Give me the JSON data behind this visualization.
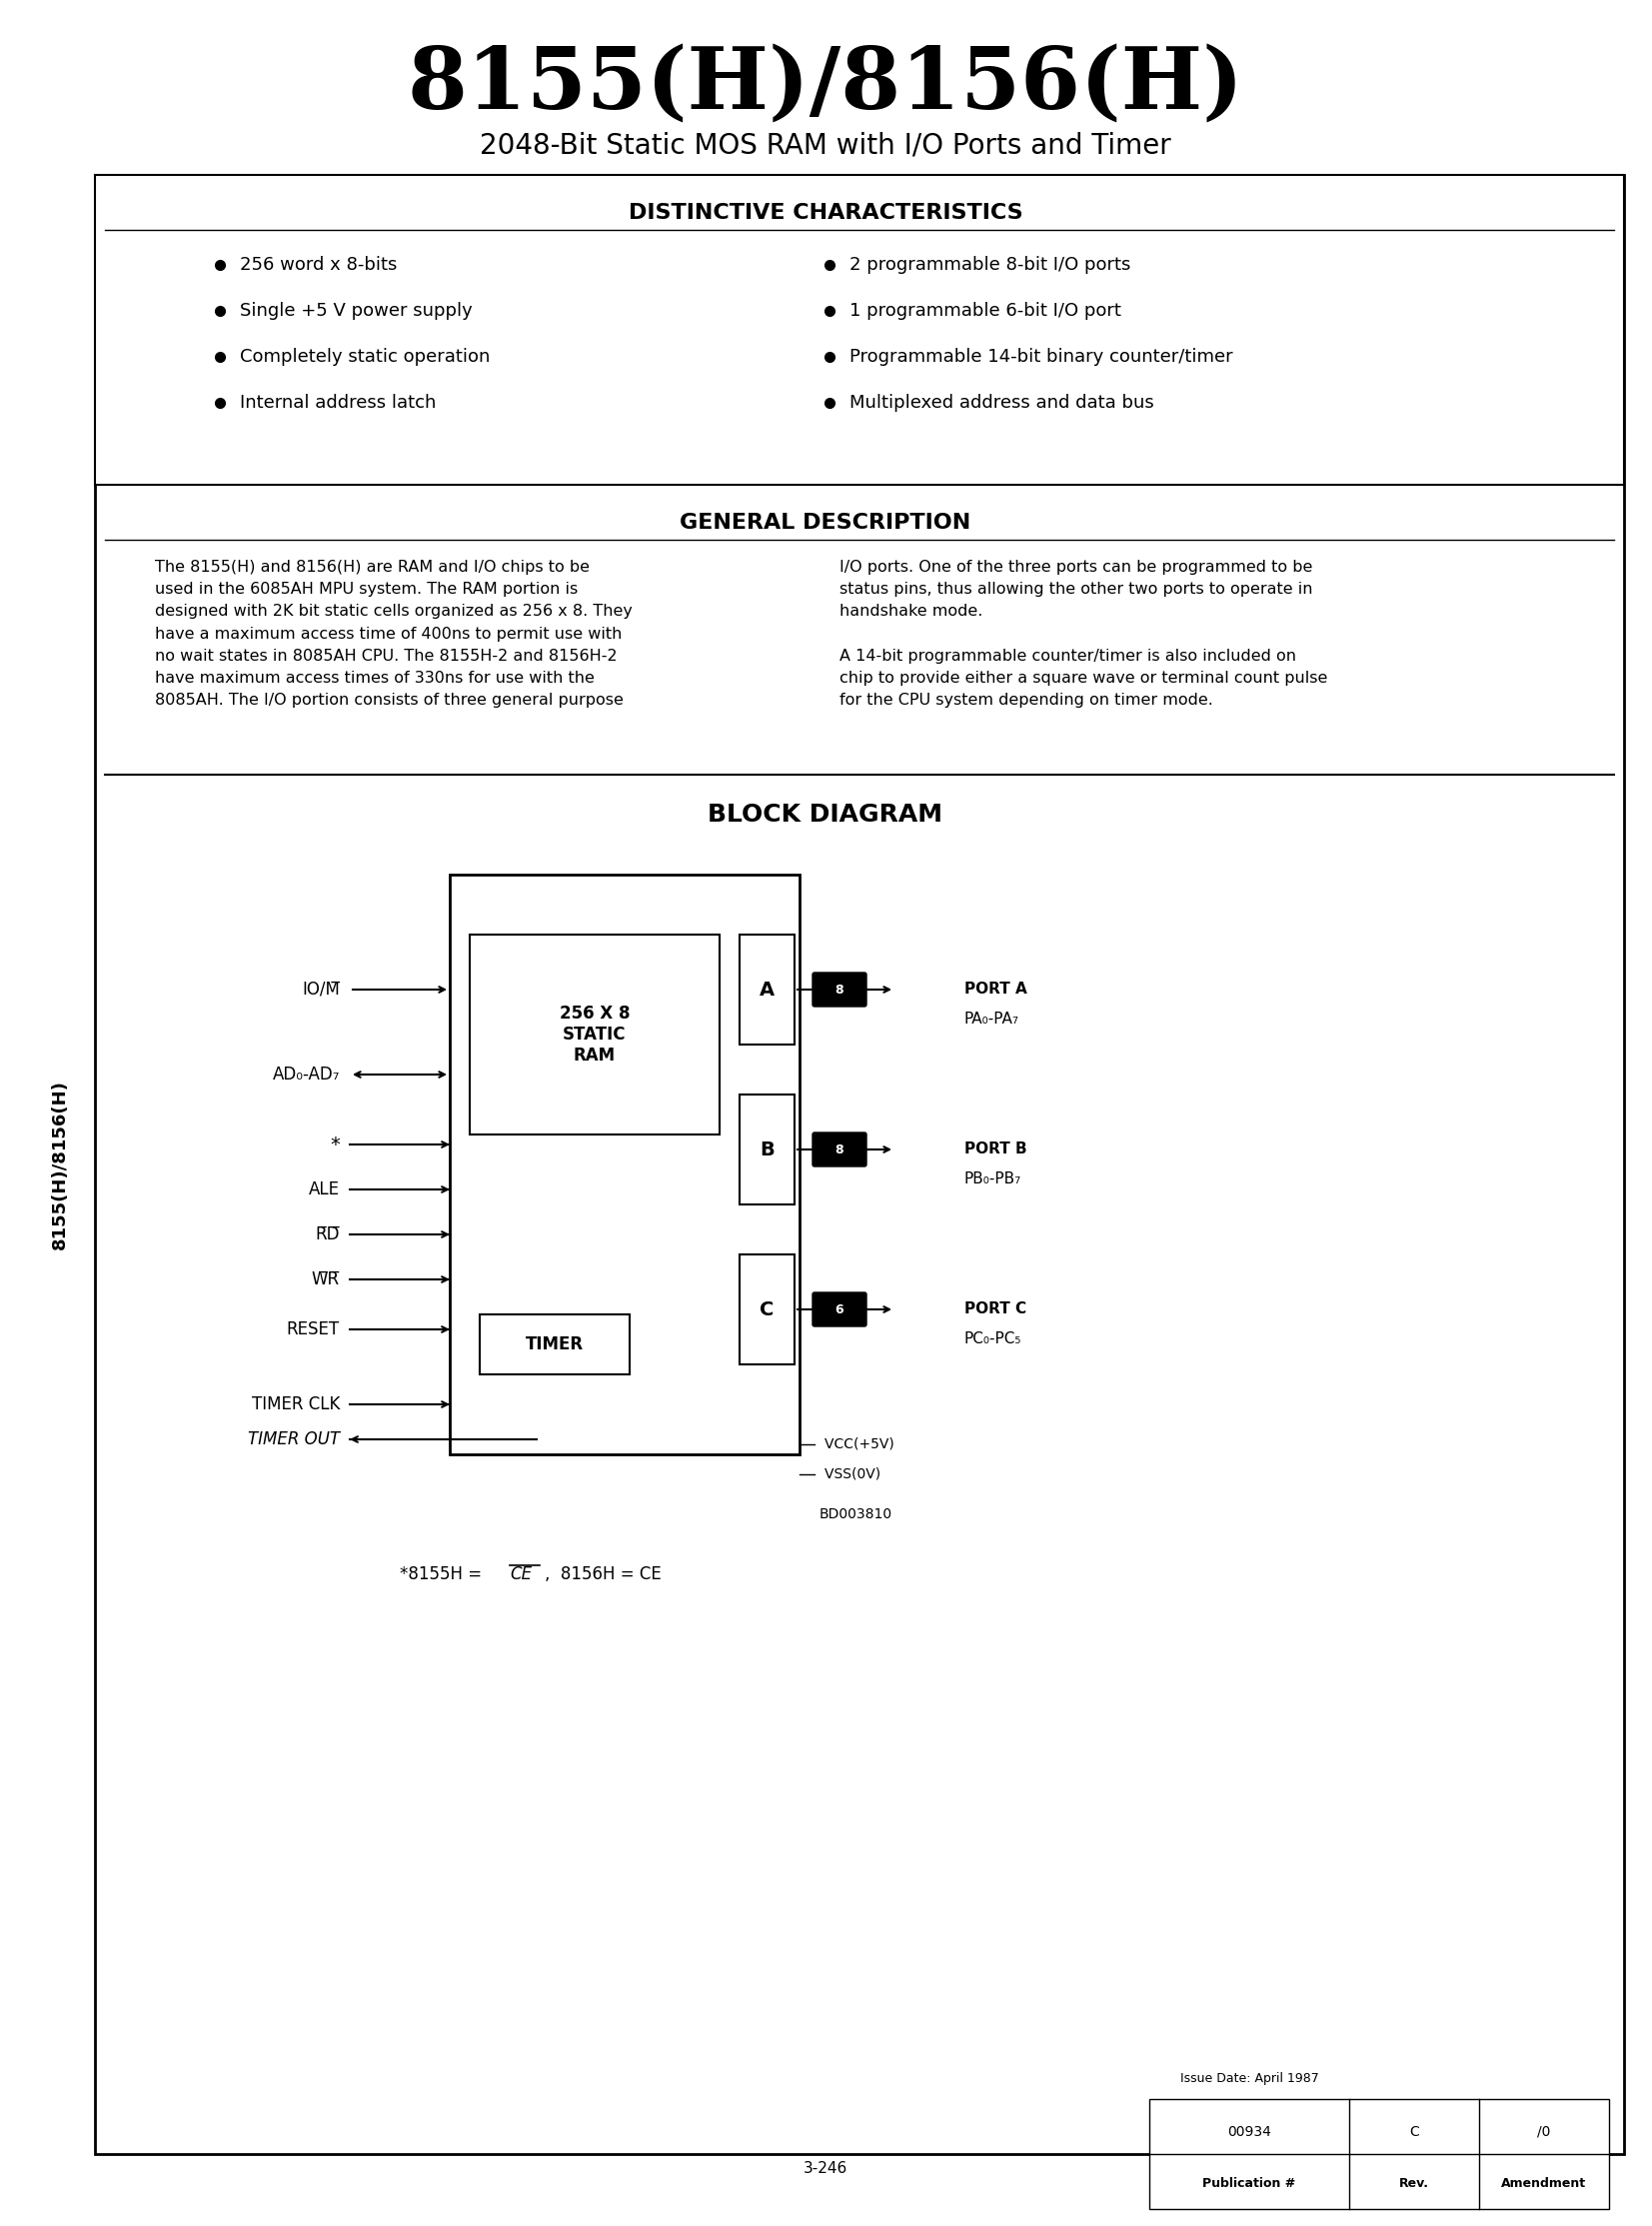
{
  "title": "8155(H)/8156(H)",
  "subtitle": "2048-Bit Static MOS RAM with I/O Ports and Timer",
  "side_label": "8155(H)/8156(H)",
  "distinctive_title": "DISTINCTIVE CHARACTERISTICS",
  "distinctive_left": [
    "256 word x 8-bits",
    "Single +5 V power supply",
    "Completely static operation",
    "Internal address latch"
  ],
  "distinctive_right": [
    "2 programmable 8-bit I/O ports",
    "1 programmable 6-bit I/O port",
    "Programmable 14-bit binary counter/timer",
    "Multiplexed address and data bus"
  ],
  "general_title": "GENERAL DESCRIPTION",
  "general_left": "The 8155(H) and 8156(H) are RAM and I/O chips to be\nused in the 6085AH MPU system. The RAM portion is\ndesigned with 2K bit static cells organized as 256 x 8. They\nhave a maximum access time of 400ns to permit use with\nno wait states in 8085AH CPU. The 8155H-2 and 8156H-2\nhave maximum access times of 330ns for use with the\n8085AH. The I/O portion consists of three general purpose",
  "general_right": "I/O ports. One of the three ports can be programmed to be\nstatus pins, thus allowing the other two ports to operate in\nhandshake mode.\n\nA 14-bit programmable counter/timer is also included on\nchip to provide either a square wave or terminal count pulse\nfor the CPU system depending on timer mode.",
  "block_title": "BLOCK DIAGRAM",
  "footnote": "*8155H = CE,  8156H = CE",
  "page_num": "3-246",
  "pub_num": "00934",
  "rev": "C",
  "amendment": "/0",
  "issue_date": "Issue Date: April 1987",
  "bg_color": "#ffffff",
  "border_color": "#000000",
  "text_color": "#000000"
}
